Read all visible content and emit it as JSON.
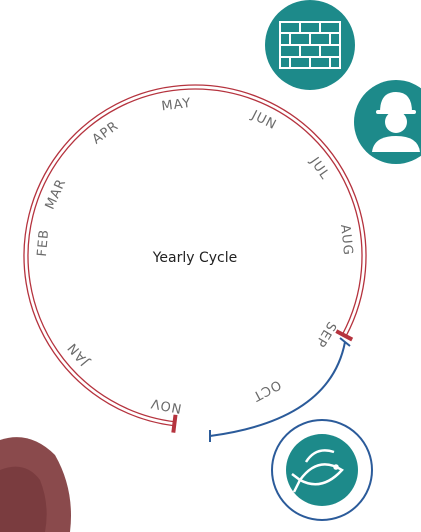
{
  "title": "Yearly Cycle",
  "months": [
    "MAY",
    "JUN",
    "JUL",
    "AUG",
    "SEP",
    "OCT",
    "NOV",
    "JAN",
    "FEB",
    "MAR",
    "APR"
  ]
}
